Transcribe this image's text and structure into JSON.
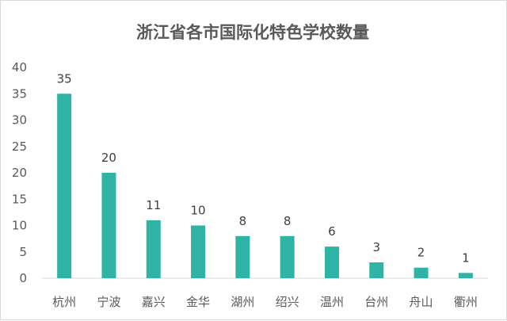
{
  "chart_data": {
    "type": "bar",
    "title": "浙江省各市国际化特色学校数量",
    "xlabel": "",
    "ylabel": "",
    "categories": [
      "杭州",
      "宁波",
      "嘉兴",
      "金华",
      "湖州",
      "绍兴",
      "温州",
      "台州",
      "舟山",
      "衢州"
    ],
    "values": [
      35,
      20,
      11,
      10,
      8,
      8,
      6,
      3,
      2,
      1
    ],
    "data_labels": [
      "35",
      "20",
      "11",
      "10",
      "8",
      "8",
      "6",
      "3",
      "2",
      "1"
    ],
    "ylim": [
      0,
      40
    ],
    "yticks": [
      "0",
      "5",
      "10",
      "15",
      "20",
      "25",
      "30",
      "35",
      "40"
    ],
    "grid": false,
    "legend": "none",
    "colors": {
      "bar": "#2fb3a5",
      "axis": "#d9d9d9"
    }
  }
}
